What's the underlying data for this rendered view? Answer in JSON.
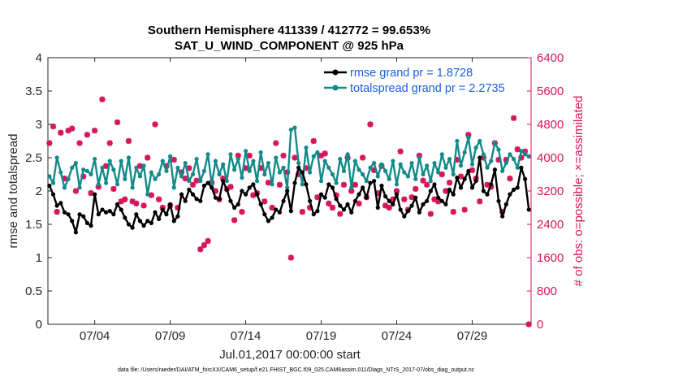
{
  "chart_data": {
    "type": "line",
    "title": "Southern Hemisphere 411339 / 412772 = 99.653%",
    "subtitle": "SAT_U_WIND_COMPONENT @ 925 hPa",
    "xlabel": "Jul.01,2017 00:00:00 start",
    "ylabel_left": "rmse and totalspread",
    "ylabel_right": "# of obs: o=possible; ×=assimilated",
    "footnote": "data file: /Users/raeder/DAI/ATM_forcXX/CAM6_setup/f.e21.FHIST_BGC.f09_025.CAM6assim.011/Diags_NTrS_2017-07/obs_diag_output.nc",
    "xlim": [
      0.9,
      32.9
    ],
    "x_ticks": [
      4,
      9,
      14,
      19,
      24,
      29
    ],
    "x_tick_labels": [
      "07/04",
      "07/09",
      "07/14",
      "07/19",
      "07/24",
      "07/29"
    ],
    "ylim_left": [
      0,
      4
    ],
    "y_ticks_left": [
      "0",
      "0.5",
      "1",
      "1.5",
      "2",
      "2.5",
      "3",
      "3.5",
      "4"
    ],
    "ylim_right": [
      0,
      6400
    ],
    "y_ticks_right": [
      "0",
      "800",
      "1600",
      "2400",
      "3200",
      "4000",
      "4800",
      "5600",
      "6400"
    ],
    "colors": {
      "rmse": "#000000",
      "spread": "#138a8a",
      "obs": "#d6175c",
      "legend_text": "#1a5fe0"
    },
    "series": [
      {
        "name": "rmse grand pr = 1.8728",
        "axis": "left",
        "values": [
          2.08,
          1.95,
          1.78,
          1.82,
          1.68,
          1.65,
          1.55,
          1.38,
          1.65,
          1.62,
          1.52,
          1.48,
          1.95,
          1.65,
          1.72,
          1.68,
          1.7,
          1.65,
          1.8,
          1.72,
          1.6,
          1.5,
          1.45,
          1.65,
          1.55,
          1.48,
          1.55,
          1.52,
          1.68,
          1.58,
          1.72,
          1.65,
          1.8,
          1.55,
          1.62,
          1.95,
          1.85,
          2.02,
          1.95,
          1.88,
          1.85,
          2.08,
          2.12,
          2.05,
          1.9,
          1.88,
          2.15,
          2.02,
          1.85,
          1.75,
          1.8,
          2.0,
          1.95,
          2.05,
          2.1,
          1.95,
          1.8,
          1.65,
          1.55,
          1.6,
          1.72,
          1.68,
          1.85,
          2.0,
          1.7,
          2.12,
          2.35,
          2.28,
          2.1,
          1.85,
          1.65,
          1.7,
          1.95,
          1.9,
          2.1,
          2.05,
          1.88,
          1.78,
          1.72,
          1.8,
          1.68,
          1.85,
          1.95,
          2.05,
          1.9,
          2.12,
          2.15,
          1.75,
          2.08,
          1.92,
          1.85,
          1.8,
          1.95,
          1.72,
          1.62,
          1.7,
          1.78,
          1.9,
          1.68,
          1.8,
          1.85,
          2.0,
          2.1,
          1.9,
          1.85,
          1.8,
          2.02,
          1.95,
          2.2,
          2.05,
          2.18,
          2.3,
          2.05,
          2.15,
          2.5,
          2.0,
          1.95,
          2.1,
          2.32,
          1.85,
          1.62,
          1.8,
          1.95,
          2.02,
          2.05,
          2.35,
          2.18,
          1.72
        ]
      },
      {
        "name": "totalspread grand pr = 2.2735",
        "axis": "left",
        "values": [
          2.22,
          2.12,
          2.5,
          2.28,
          2.05,
          2.18,
          2.35,
          2.42,
          2.05,
          2.32,
          2.3,
          2.25,
          2.48,
          2.1,
          2.35,
          2.12,
          2.45,
          2.32,
          2.1,
          2.45,
          2.18,
          2.5,
          2.05,
          2.35,
          2.22,
          2.38,
          1.95,
          2.28,
          2.18,
          2.25,
          2.45,
          2.3,
          2.52,
          2.05,
          2.35,
          2.22,
          2.42,
          2.15,
          2.25,
          2.48,
          2.15,
          2.3,
          2.55,
          2.1,
          2.45,
          2.25,
          2.4,
          2.15,
          2.55,
          2.32,
          2.48,
          2.2,
          2.6,
          2.3,
          2.45,
          2.15,
          2.58,
          2.25,
          2.42,
          2.1,
          2.5,
          2.28,
          2.35,
          2.05,
          2.92,
          2.95,
          2.42,
          2.1,
          2.65,
          2.28,
          2.52,
          2.58,
          2.15,
          2.45,
          2.35,
          2.25,
          2.12,
          2.48,
          2.3,
          2.55,
          2.05,
          2.45,
          2.32,
          2.25,
          2.15,
          2.35,
          2.42,
          2.22,
          2.4,
          2.3,
          2.18,
          2.45,
          2.1,
          2.4,
          2.28,
          2.22,
          2.42,
          2.18,
          2.5,
          2.25,
          2.38,
          2.15,
          2.42,
          2.28,
          2.55,
          2.35,
          2.48,
          2.25,
          2.75,
          2.38,
          2.58,
          2.8,
          2.4,
          2.65,
          2.75,
          2.55,
          2.35,
          2.45,
          2.72,
          2.62,
          2.3,
          2.42,
          2.55,
          2.48,
          2.35,
          2.6,
          2.55,
          2.52
        ]
      },
      {
        "name": "# of obs (assimilated)",
        "axis": "right",
        "values": [
          4350,
          4750,
          2700,
          4600,
          3500,
          4650,
          4700,
          3200,
          4350,
          3550,
          4550,
          3150,
          4650,
          3300,
          5400,
          3800,
          4350,
          3250,
          4850,
          2950,
          3000,
          4400,
          2950,
          2900,
          3800,
          2850,
          4000,
          3100,
          4800,
          3000,
          2800,
          3800,
          2850,
          3950,
          2800,
          3650,
          3500,
          3750,
          3350,
          3450,
          1800,
          1900,
          2000,
          3400,
          3200,
          3000,
          3500,
          3250,
          3300,
          2500,
          4050,
          2700,
          3750,
          4050,
          3100,
          3150,
          3750,
          2950,
          3400,
          2800,
          4350,
          3350,
          4050,
          3650,
          1600,
          4000,
          3600,
          2700,
          3750,
          2800,
          4400,
          3050,
          4050,
          4100,
          2900,
          2800,
          3100,
          2650,
          3350,
          4000,
          3200,
          3350,
          2900,
          4000,
          3050,
          4800,
          3700,
          3150,
          3800,
          2850,
          2800,
          3000,
          3200,
          4150,
          3000,
          2750,
          3050,
          3250,
          4050,
          3450,
          3350,
          2650,
          3000,
          2950,
          3600,
          3200,
          3400,
          2700,
          3950,
          3550,
          2750,
          4550,
          3700,
          3500,
          2950,
          4000,
          3350,
          3300,
          4350,
          3950,
          2700,
          3950,
          3500,
          4950,
          4200,
          4000,
          4150,
          0
        ]
      }
    ]
  }
}
